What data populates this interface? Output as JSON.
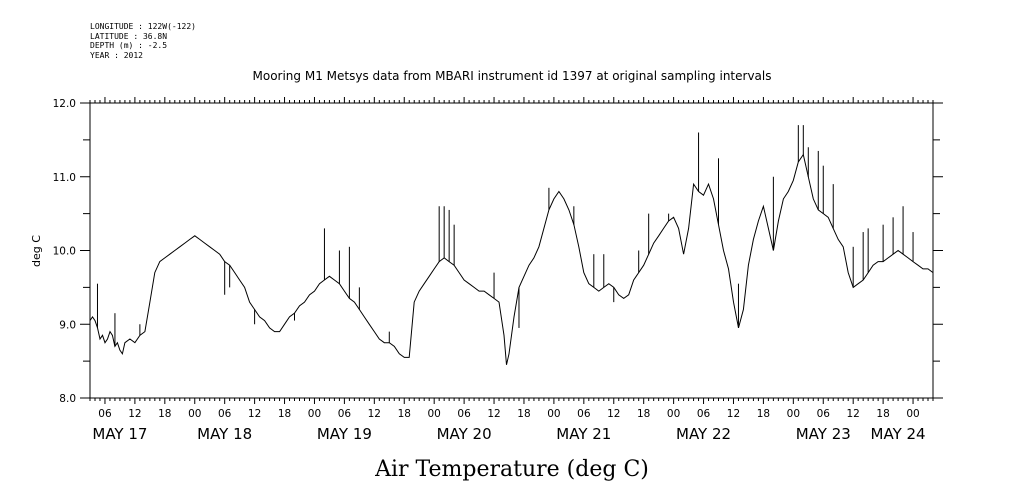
{
  "meta": {
    "longitude": "LONGITUDE : 122W(-122)",
    "latitude": "LATITUDE : 36.8N",
    "depth": "DEPTH (m) : -2.5",
    "year": "YEAR : 2012"
  },
  "chart_data": {
    "type": "line",
    "title": "Mooring M1 Metsys data from MBARI instrument id 1397 at original sampling intervals",
    "xlabel": "Air Temperature (deg C)",
    "ylabel": "deg C",
    "ylim": [
      8.0,
      12.0
    ],
    "yticks": [
      "8.0",
      "9.0",
      "10.0",
      "11.0",
      "12.0"
    ],
    "x_range_hours": [
      3,
      172
    ],
    "hour_tick_labels": [
      "06",
      "12",
      "18",
      "00",
      "06",
      "12",
      "18",
      "00",
      "06",
      "12",
      "18",
      "00",
      "06",
      "12",
      "18",
      "00",
      "06",
      "12",
      "18",
      "00",
      "06",
      "12",
      "18",
      "00",
      "06",
      "12",
      "18",
      "00",
      "06",
      "12",
      "18",
      "00"
    ],
    "date_labels": [
      {
        "label": "MAY 17",
        "hour": 9
      },
      {
        "label": "MAY 18",
        "hour": 30
      },
      {
        "label": "MAY 19",
        "hour": 54
      },
      {
        "label": "MAY 20",
        "hour": 78
      },
      {
        "label": "MAY 21",
        "hour": 102
      },
      {
        "label": "MAY 22",
        "hour": 126
      },
      {
        "label": "MAY 23",
        "hour": 150
      },
      {
        "label": "MAY 24",
        "hour": 165
      }
    ],
    "x_unit": "hours since 2012-05-17 00:00",
    "series": [
      {
        "values": [
          [
            3,
            9.05
          ],
          [
            3.5,
            9.1
          ],
          [
            4,
            9.05
          ],
          [
            4.5,
            8.95
          ],
          [
            5,
            8.8
          ],
          [
            5.5,
            8.85
          ],
          [
            6,
            8.75
          ],
          [
            6.5,
            8.8
          ],
          [
            7,
            8.9
          ],
          [
            7.5,
            8.85
          ],
          [
            8,
            8.7
          ],
          [
            8.5,
            8.75
          ],
          [
            9,
            8.65
          ],
          [
            9.5,
            8.6
          ],
          [
            10,
            8.75
          ],
          [
            11,
            8.8
          ],
          [
            12,
            8.75
          ],
          [
            13,
            8.85
          ],
          [
            14,
            8.9
          ],
          [
            15,
            9.3
          ],
          [
            16,
            9.7
          ],
          [
            17,
            9.85
          ],
          [
            18,
            9.9
          ],
          [
            19,
            9.95
          ],
          [
            20,
            10.0
          ],
          [
            21,
            10.05
          ],
          [
            22,
            10.1
          ],
          [
            23,
            10.15
          ],
          [
            24,
            10.2
          ],
          [
            25,
            10.15
          ],
          [
            26,
            10.1
          ],
          [
            27,
            10.05
          ],
          [
            28,
            10.0
          ],
          [
            29,
            9.95
          ],
          [
            30,
            9.85
          ],
          [
            31,
            9.8
          ],
          [
            32,
            9.7
          ],
          [
            33,
            9.6
          ],
          [
            34,
            9.5
          ],
          [
            35,
            9.3
          ],
          [
            36,
            9.2
          ],
          [
            37,
            9.1
          ],
          [
            38,
            9.05
          ],
          [
            39,
            8.95
          ],
          [
            40,
            8.9
          ],
          [
            41,
            8.9
          ],
          [
            42,
            9.0
          ],
          [
            43,
            9.1
          ],
          [
            44,
            9.15
          ],
          [
            45,
            9.25
          ],
          [
            46,
            9.3
          ],
          [
            47,
            9.4
          ],
          [
            48,
            9.45
          ],
          [
            49,
            9.55
          ],
          [
            50,
            9.6
          ],
          [
            51,
            9.65
          ],
          [
            52,
            9.6
          ],
          [
            53,
            9.55
          ],
          [
            54,
            9.45
          ],
          [
            55,
            9.35
          ],
          [
            56,
            9.3
          ],
          [
            57,
            9.2
          ],
          [
            58,
            9.1
          ],
          [
            59,
            9.0
          ],
          [
            60,
            8.9
          ],
          [
            61,
            8.8
          ],
          [
            62,
            8.75
          ],
          [
            63,
            8.75
          ],
          [
            64,
            8.7
          ],
          [
            65,
            8.6
          ],
          [
            66,
            8.55
          ],
          [
            67,
            8.55
          ],
          [
            68,
            9.3
          ],
          [
            69,
            9.45
          ],
          [
            70,
            9.55
          ],
          [
            71,
            9.65
          ],
          [
            72,
            9.75
          ],
          [
            73,
            9.85
          ],
          [
            74,
            9.9
          ],
          [
            75,
            9.85
          ],
          [
            76,
            9.8
          ],
          [
            77,
            9.7
          ],
          [
            78,
            9.6
          ],
          [
            79,
            9.55
          ],
          [
            80,
            9.5
          ],
          [
            81,
            9.45
          ],
          [
            82,
            9.45
          ],
          [
            83,
            9.4
          ],
          [
            84,
            9.35
          ],
          [
            85,
            9.3
          ],
          [
            86,
            8.85
          ],
          [
            86.5,
            8.45
          ],
          [
            87,
            8.6
          ],
          [
            88,
            9.1
          ],
          [
            89,
            9.5
          ],
          [
            90,
            9.65
          ],
          [
            91,
            9.8
          ],
          [
            92,
            9.9
          ],
          [
            93,
            10.05
          ],
          [
            94,
            10.3
          ],
          [
            95,
            10.55
          ],
          [
            96,
            10.7
          ],
          [
            97,
            10.8
          ],
          [
            98,
            10.7
          ],
          [
            99,
            10.55
          ],
          [
            100,
            10.35
          ],
          [
            101,
            10.05
          ],
          [
            102,
            9.7
          ],
          [
            103,
            9.55
          ],
          [
            104,
            9.5
          ],
          [
            105,
            9.45
          ],
          [
            106,
            9.5
          ],
          [
            107,
            9.55
          ],
          [
            108,
            9.5
          ],
          [
            109,
            9.4
          ],
          [
            110,
            9.35
          ],
          [
            111,
            9.4
          ],
          [
            112,
            9.6
          ],
          [
            113,
            9.7
          ],
          [
            114,
            9.8
          ],
          [
            115,
            9.95
          ],
          [
            116,
            10.1
          ],
          [
            117,
            10.2
          ],
          [
            118,
            10.3
          ],
          [
            119,
            10.4
          ],
          [
            120,
            10.45
          ],
          [
            121,
            10.3
          ],
          [
            122,
            9.95
          ],
          [
            123,
            10.3
          ],
          [
            124,
            10.9
          ],
          [
            125,
            10.8
          ],
          [
            126,
            10.75
          ],
          [
            127,
            10.9
          ],
          [
            128,
            10.7
          ],
          [
            129,
            10.35
          ],
          [
            130,
            10.0
          ],
          [
            131,
            9.75
          ],
          [
            132,
            9.3
          ],
          [
            133,
            8.95
          ],
          [
            134,
            9.2
          ],
          [
            135,
            9.8
          ],
          [
            136,
            10.15
          ],
          [
            137,
            10.4
          ],
          [
            138,
            10.6
          ],
          [
            139,
            10.3
          ],
          [
            140,
            10.0
          ],
          [
            141,
            10.4
          ],
          [
            142,
            10.7
          ],
          [
            143,
            10.8
          ],
          [
            144,
            10.95
          ],
          [
            145,
            11.2
          ],
          [
            146,
            11.3
          ],
          [
            147,
            11.0
          ],
          [
            148,
            10.7
          ],
          [
            149,
            10.55
          ],
          [
            150,
            10.5
          ],
          [
            151,
            10.45
          ],
          [
            152,
            10.3
          ],
          [
            153,
            10.15
          ],
          [
            154,
            10.05
          ],
          [
            155,
            9.7
          ],
          [
            156,
            9.5
          ],
          [
            157,
            9.55
          ],
          [
            158,
            9.6
          ],
          [
            159,
            9.7
          ],
          [
            160,
            9.8
          ],
          [
            161,
            9.85
          ],
          [
            162,
            9.85
          ],
          [
            163,
            9.9
          ],
          [
            164,
            9.95
          ],
          [
            165,
            10.0
          ],
          [
            166,
            9.95
          ],
          [
            167,
            9.9
          ],
          [
            168,
            9.85
          ],
          [
            169,
            9.8
          ],
          [
            170,
            9.75
          ],
          [
            171,
            9.75
          ],
          [
            172,
            9.7
          ]
        ],
        "spikes": [
          [
            4.5,
            9.55
          ],
          [
            8,
            9.15
          ],
          [
            13,
            9.0
          ],
          [
            30,
            9.4
          ],
          [
            31,
            9.5
          ],
          [
            36,
            9.0
          ],
          [
            44,
            9.05
          ],
          [
            50,
            10.3
          ],
          [
            53,
            10.0
          ],
          [
            55,
            10.05
          ],
          [
            57,
            9.5
          ],
          [
            63,
            8.9
          ],
          [
            73,
            10.6
          ],
          [
            74,
            10.6
          ],
          [
            75,
            10.55
          ],
          [
            76,
            10.35
          ],
          [
            84,
            9.7
          ],
          [
            89,
            8.95
          ],
          [
            95,
            10.85
          ],
          [
            100,
            10.6
          ],
          [
            104,
            9.95
          ],
          [
            106,
            9.95
          ],
          [
            108,
            9.3
          ],
          [
            113,
            10.0
          ],
          [
            115,
            10.5
          ],
          [
            119,
            10.5
          ],
          [
            125,
            11.6
          ],
          [
            129,
            11.25
          ],
          [
            133,
            9.55
          ],
          [
            140,
            11.0
          ],
          [
            145,
            11.7
          ],
          [
            146,
            11.7
          ],
          [
            147,
            11.4
          ],
          [
            149,
            11.35
          ],
          [
            150,
            11.15
          ],
          [
            152,
            10.9
          ],
          [
            156,
            10.05
          ],
          [
            158,
            10.25
          ],
          [
            159,
            10.3
          ],
          [
            162,
            10.35
          ],
          [
            164,
            10.45
          ],
          [
            166,
            10.6
          ],
          [
            168,
            10.25
          ]
        ]
      }
    ]
  }
}
